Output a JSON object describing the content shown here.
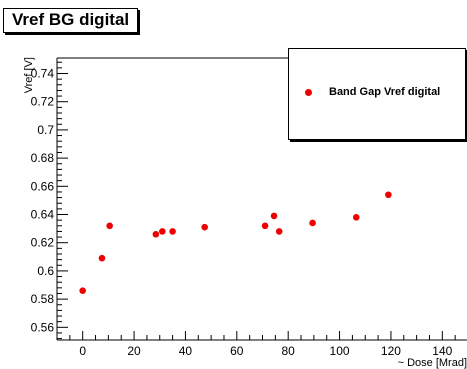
{
  "chart_data": {
    "type": "scatter",
    "title": "Vref BG digital",
    "xlabel": "~ Dose [Mrad]",
    "ylabel": "Vref [V]",
    "xlim": [
      -10,
      150
    ],
    "ylim": [
      0.551,
      0.751
    ],
    "x_ticks": [
      0,
      20,
      40,
      60,
      80,
      100,
      120,
      140
    ],
    "y_ticks": [
      0.56,
      0.58,
      0.6,
      0.62,
      0.64,
      0.66,
      0.68,
      0.7,
      0.72,
      0.74
    ],
    "x_tick_labels": [
      "0",
      "20",
      "40",
      "60",
      "80",
      "100",
      "120",
      "140"
    ],
    "y_tick_labels": [
      "0.56",
      "0.58",
      "0.6",
      "0.62",
      "0.64",
      "0.66",
      "0.68",
      "0.7",
      "0.72",
      "0.74"
    ],
    "legend_position": "top-right",
    "grid": false,
    "series": [
      {
        "name": "Band Gap Vref digital",
        "color": "#ee0000",
        "x": [
          0,
          7.5,
          10.5,
          28.5,
          31,
          35,
          47.5,
          71,
          74.5,
          76.5,
          89.5,
          106.5,
          119
        ],
        "y": [
          0.586,
          0.609,
          0.632,
          0.626,
          0.628,
          0.628,
          0.631,
          0.632,
          0.639,
          0.628,
          0.634,
          0.638,
          0.654
        ]
      }
    ]
  }
}
